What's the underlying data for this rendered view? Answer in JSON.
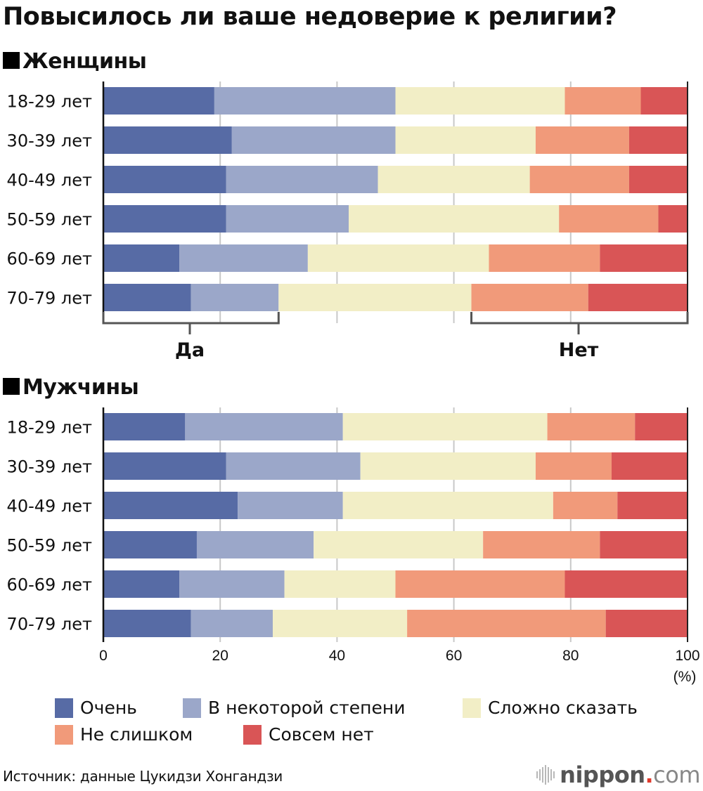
{
  "chart_data": {
    "type": "bar",
    "orientation": "horizontal",
    "stacked": true,
    "title": "Повысилось ли ваше недоверие к религии?",
    "xlabel": "(%)",
    "ylabel": "",
    "xlim": [
      0,
      100
    ],
    "x_ticks": [
      "0",
      "20",
      "40",
      "60",
      "80",
      "100"
    ],
    "grid": true,
    "legend_position": "bottom",
    "series_names": [
      "Очень",
      "В некоторой степени",
      "Сложно сказать",
      "Не слишком",
      "Совсем нет"
    ],
    "colors": [
      "#576ba5",
      "#9ba7c9",
      "#f2eec6",
      "#f19a7a",
      "#d95556"
    ],
    "brackets": [
      {
        "label": "Да",
        "covers": [
          "Очень",
          "В некоторой степени"
        ]
      },
      {
        "label": "Нет",
        "covers": [
          "Не слишком",
          "Совсем нет"
        ]
      }
    ],
    "panels": [
      {
        "name": "Женщины",
        "categories": [
          "18-29 лет",
          "30-39 лет",
          "40-49 лет",
          "50-59 лет",
          "60-69 лет",
          "70-79 лет"
        ],
        "series": [
          {
            "name": "Очень",
            "values": [
              19,
              22,
              21,
              21,
              13,
              15
            ]
          },
          {
            "name": "В некоторой степени",
            "values": [
              31,
              28,
              26,
              21,
              22,
              15
            ]
          },
          {
            "name": "Сложно сказать",
            "values": [
              29,
              24,
              26,
              36,
              31,
              33
            ]
          },
          {
            "name": "Не слишком",
            "values": [
              13,
              16,
              17,
              17,
              19,
              20
            ]
          },
          {
            "name": "Совсем нет",
            "values": [
              8,
              10,
              10,
              5,
              15,
              17
            ]
          }
        ]
      },
      {
        "name": "Мужчины",
        "categories": [
          "18-29 лет",
          "30-39 лет",
          "40-49 лет",
          "50-59 лет",
          "60-69 лет",
          "70-79 лет"
        ],
        "series": [
          {
            "name": "Очень",
            "values": [
              14,
              21,
              23,
              16,
              13,
              15
            ]
          },
          {
            "name": "В некоторой степени",
            "values": [
              27,
              23,
              18,
              20,
              18,
              14
            ]
          },
          {
            "name": "Сложно сказать",
            "values": [
              35,
              30,
              36,
              29,
              19,
              23
            ]
          },
          {
            "name": "Не слишком",
            "values": [
              15,
              13,
              11,
              20,
              29,
              34
            ]
          },
          {
            "name": "Совсем нет",
            "values": [
              9,
              13,
              12,
              15,
              21,
              14
            ]
          }
        ]
      }
    ]
  },
  "header": {
    "title": "Повысилось ли ваше недоверие к религии?",
    "section_women": "Женщины",
    "section_men": "Мужчины"
  },
  "legend": {
    "items": [
      {
        "label": "Очень",
        "color": "#576ba5"
      },
      {
        "label": "В некоторой степени",
        "color": "#9ba7c9"
      },
      {
        "label": "Сложно сказать",
        "color": "#f2eec6"
      },
      {
        "label": "Не слишком",
        "color": "#f19a7a"
      },
      {
        "label": "Совсем нет",
        "color": "#d95556"
      }
    ]
  },
  "footer": {
    "source": "Источник: данные Цукидзи Хонгандзи",
    "logo_name": "nippon",
    "logo_dot": ".",
    "logo_tld": "com"
  }
}
